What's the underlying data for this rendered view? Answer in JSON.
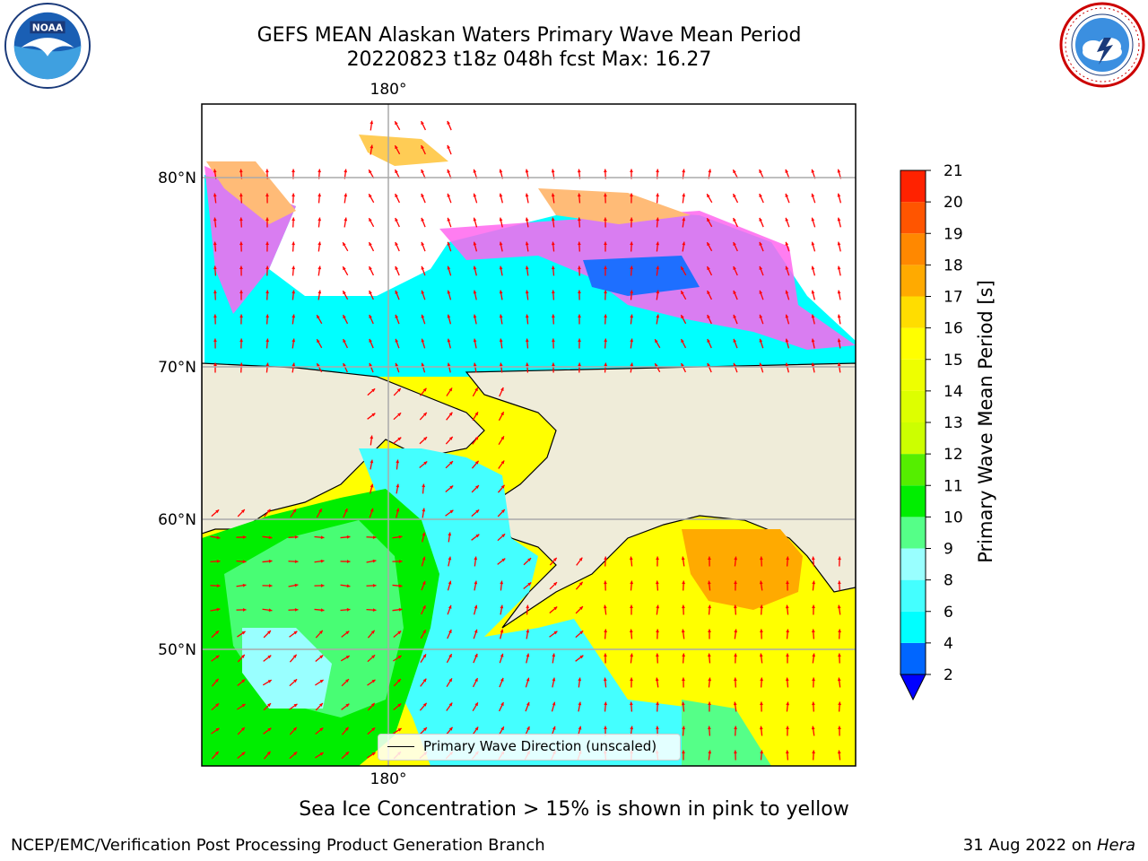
{
  "header": {
    "title_line1": "GEFS MEAN Alaskan Waters Primary Wave Mean Period",
    "title_line2": "20220823 t18z 048h fcst   Max: 16.27"
  },
  "logos": {
    "left": "noaa-logo",
    "right": "national-weather-service-logo",
    "left_text": "NOAA",
    "right_text": "NATIONAL WEATHER SERVICE"
  },
  "map": {
    "lon_label_top": "180°",
    "lon_label_bottom": "180°",
    "lat_labels": [
      "80°N",
      "70°N",
      "60°N",
      "50°N"
    ],
    "land_color": "#efecd9",
    "arrow_color": "#ff0000",
    "legend_label": "Primary Wave Direction (unscaled)"
  },
  "colorbar": {
    "title": "Primary Wave Mean Period [s]",
    "tick_labels": [
      "2",
      "4",
      "6",
      "8",
      "9",
      "10",
      "11",
      "12",
      "13",
      "14",
      "15",
      "16",
      "17",
      "18",
      "19",
      "20",
      "21"
    ],
    "colors": [
      "#0066ff",
      "#00ffff",
      "#44ffff",
      "#99ffff",
      "#55ff88",
      "#00ee00",
      "#55ee00",
      "#ccff00",
      "#ddff00",
      "#eeff00",
      "#ffff00",
      "#ffdd00",
      "#ffaa00",
      "#ff8800",
      "#ff5500",
      "#ff2200"
    ],
    "under_color": "#0000ff"
  },
  "caption": "Sea Ice Concentration > 15% is shown in pink to yellow",
  "footer": {
    "left": "NCEP/EMC/Verification Post Processing Product Generation Branch",
    "right_date": "31 Aug 2022 on ",
    "right_host": "Hera"
  }
}
